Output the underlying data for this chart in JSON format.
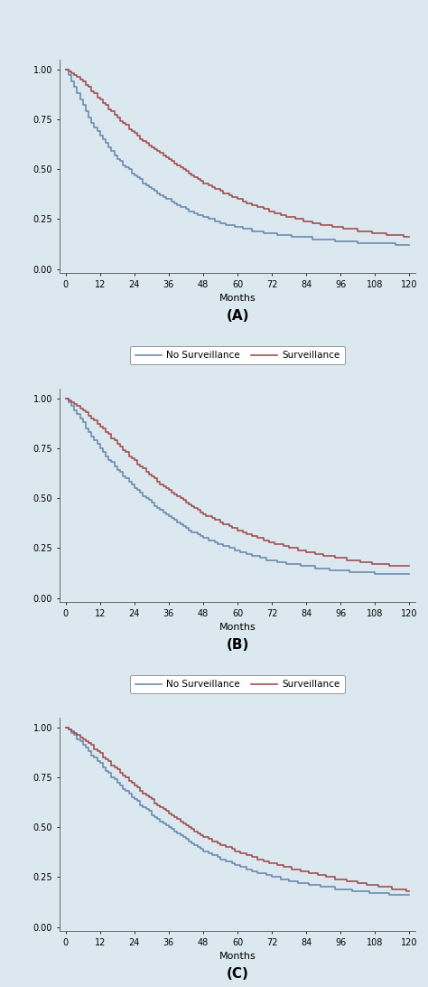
{
  "background_color": "#dce8f0",
  "plot_bg_color": "#dce8f0",
  "fig_width": 4.74,
  "fig_height": 10.92,
  "panels": [
    "A",
    "B",
    "C"
  ],
  "xlabel": "Months",
  "ylabel": "",
  "xticks": [
    0,
    12,
    24,
    36,
    48,
    60,
    72,
    84,
    96,
    108,
    120
  ],
  "yticks": [
    0.0,
    0.25,
    0.5,
    0.75,
    1.0
  ],
  "ylim": [
    -0.02,
    1.05
  ],
  "xlim": [
    -2,
    122
  ],
  "no_surv_color": "#6b8cae",
  "surv_color": "#a05050",
  "legend_labels": [
    "No Surveillance",
    "Surveillance"
  ],
  "line_width": 1.2,
  "panel_A": {
    "no_surv_x": [
      0,
      1,
      2,
      3,
      4,
      5,
      6,
      7,
      8,
      9,
      10,
      11,
      12,
      13,
      14,
      15,
      16,
      17,
      18,
      19,
      20,
      21,
      22,
      23,
      24,
      25,
      26,
      27,
      28,
      29,
      30,
      31,
      32,
      33,
      34,
      35,
      36,
      37,
      38,
      39,
      40,
      41,
      42,
      43,
      44,
      45,
      46,
      47,
      48,
      49,
      50,
      51,
      52,
      53,
      54,
      55,
      56,
      57,
      58,
      59,
      60,
      61,
      62,
      63,
      64,
      65,
      66,
      67,
      68,
      69,
      70,
      71,
      72,
      73,
      74,
      75,
      76,
      77,
      78,
      79,
      80,
      81,
      82,
      83,
      84,
      85,
      86,
      87,
      88,
      89,
      90,
      91,
      92,
      93,
      94,
      95,
      96,
      97,
      98,
      99,
      100,
      101,
      102,
      103,
      104,
      105,
      106,
      107,
      108,
      109,
      110,
      111,
      112,
      113,
      114,
      115,
      116,
      117,
      118,
      119,
      120
    ],
    "no_surv_y": [
      1.0,
      0.97,
      0.94,
      0.91,
      0.88,
      0.85,
      0.82,
      0.79,
      0.76,
      0.73,
      0.71,
      0.69,
      0.67,
      0.65,
      0.63,
      0.61,
      0.59,
      0.57,
      0.55,
      0.54,
      0.52,
      0.51,
      0.5,
      0.48,
      0.47,
      0.46,
      0.45,
      0.43,
      0.42,
      0.41,
      0.4,
      0.39,
      0.38,
      0.37,
      0.36,
      0.35,
      0.35,
      0.34,
      0.33,
      0.32,
      0.31,
      0.31,
      0.3,
      0.29,
      0.29,
      0.28,
      0.27,
      0.27,
      0.26,
      0.26,
      0.25,
      0.25,
      0.24,
      0.24,
      0.23,
      0.23,
      0.22,
      0.22,
      0.22,
      0.21,
      0.21,
      0.21,
      0.2,
      0.2,
      0.2,
      0.19,
      0.19,
      0.19,
      0.19,
      0.18,
      0.18,
      0.18,
      0.18,
      0.18,
      0.17,
      0.17,
      0.17,
      0.17,
      0.17,
      0.16,
      0.16,
      0.16,
      0.16,
      0.16,
      0.16,
      0.16,
      0.15,
      0.15,
      0.15,
      0.15,
      0.15,
      0.15,
      0.15,
      0.15,
      0.14,
      0.14,
      0.14,
      0.14,
      0.14,
      0.14,
      0.14,
      0.14,
      0.13,
      0.13,
      0.13,
      0.13,
      0.13,
      0.13,
      0.13,
      0.13,
      0.13,
      0.13,
      0.13,
      0.13,
      0.13,
      0.12,
      0.12,
      0.12,
      0.12,
      0.12,
      0.12
    ],
    "surv_x": [
      0,
      1,
      2,
      3,
      4,
      5,
      6,
      7,
      8,
      9,
      10,
      11,
      12,
      13,
      14,
      15,
      16,
      17,
      18,
      19,
      20,
      21,
      22,
      23,
      24,
      25,
      26,
      27,
      28,
      29,
      30,
      31,
      32,
      33,
      34,
      35,
      36,
      37,
      38,
      39,
      40,
      41,
      42,
      43,
      44,
      45,
      46,
      47,
      48,
      49,
      50,
      51,
      52,
      53,
      54,
      55,
      56,
      57,
      58,
      59,
      60,
      61,
      62,
      63,
      64,
      65,
      66,
      67,
      68,
      69,
      70,
      71,
      72,
      73,
      74,
      75,
      76,
      77,
      78,
      79,
      80,
      81,
      82,
      83,
      84,
      85,
      86,
      87,
      88,
      89,
      90,
      91,
      92,
      93,
      94,
      95,
      96,
      97,
      98,
      99,
      100,
      101,
      102,
      103,
      104,
      105,
      106,
      107,
      108,
      109,
      110,
      111,
      112,
      113,
      114,
      115,
      116,
      117,
      118,
      119,
      120
    ],
    "surv_y": [
      1.0,
      0.99,
      0.98,
      0.97,
      0.96,
      0.95,
      0.94,
      0.92,
      0.91,
      0.89,
      0.88,
      0.86,
      0.85,
      0.83,
      0.82,
      0.8,
      0.79,
      0.77,
      0.76,
      0.74,
      0.73,
      0.72,
      0.7,
      0.69,
      0.68,
      0.67,
      0.65,
      0.64,
      0.63,
      0.62,
      0.61,
      0.6,
      0.59,
      0.58,
      0.57,
      0.56,
      0.55,
      0.54,
      0.53,
      0.52,
      0.51,
      0.5,
      0.49,
      0.48,
      0.47,
      0.46,
      0.45,
      0.44,
      0.43,
      0.43,
      0.42,
      0.41,
      0.4,
      0.4,
      0.39,
      0.38,
      0.38,
      0.37,
      0.36,
      0.36,
      0.35,
      0.35,
      0.34,
      0.33,
      0.33,
      0.32,
      0.32,
      0.31,
      0.31,
      0.3,
      0.3,
      0.29,
      0.29,
      0.28,
      0.28,
      0.27,
      0.27,
      0.26,
      0.26,
      0.26,
      0.25,
      0.25,
      0.25,
      0.24,
      0.24,
      0.24,
      0.23,
      0.23,
      0.23,
      0.22,
      0.22,
      0.22,
      0.22,
      0.21,
      0.21,
      0.21,
      0.21,
      0.2,
      0.2,
      0.2,
      0.2,
      0.2,
      0.19,
      0.19,
      0.19,
      0.19,
      0.19,
      0.18,
      0.18,
      0.18,
      0.18,
      0.18,
      0.17,
      0.17,
      0.17,
      0.17,
      0.17,
      0.17,
      0.16,
      0.16,
      0.16
    ]
  },
  "panel_B": {
    "no_surv_x": [
      0,
      1,
      2,
      3,
      4,
      5,
      6,
      7,
      8,
      9,
      10,
      11,
      12,
      13,
      14,
      15,
      16,
      17,
      18,
      19,
      20,
      21,
      22,
      23,
      24,
      25,
      26,
      27,
      28,
      29,
      30,
      31,
      32,
      33,
      34,
      35,
      36,
      37,
      38,
      39,
      40,
      41,
      42,
      43,
      44,
      45,
      46,
      47,
      48,
      49,
      50,
      51,
      52,
      53,
      54,
      55,
      56,
      57,
      58,
      59,
      60,
      61,
      62,
      63,
      64,
      65,
      66,
      67,
      68,
      69,
      70,
      71,
      72,
      73,
      74,
      75,
      76,
      77,
      78,
      79,
      80,
      81,
      82,
      83,
      84,
      85,
      86,
      87,
      88,
      89,
      90,
      91,
      92,
      93,
      94,
      95,
      96,
      97,
      98,
      99,
      100,
      101,
      102,
      103,
      104,
      105,
      106,
      107,
      108,
      109,
      110,
      111,
      112,
      113,
      114,
      115,
      116,
      117,
      118,
      119,
      120
    ],
    "no_surv_y": [
      1.0,
      0.98,
      0.96,
      0.94,
      0.92,
      0.9,
      0.88,
      0.85,
      0.83,
      0.81,
      0.79,
      0.77,
      0.75,
      0.73,
      0.71,
      0.69,
      0.68,
      0.66,
      0.64,
      0.63,
      0.61,
      0.6,
      0.58,
      0.57,
      0.55,
      0.54,
      0.53,
      0.51,
      0.5,
      0.49,
      0.48,
      0.46,
      0.45,
      0.44,
      0.43,
      0.42,
      0.41,
      0.4,
      0.39,
      0.38,
      0.37,
      0.36,
      0.35,
      0.34,
      0.33,
      0.33,
      0.32,
      0.31,
      0.3,
      0.3,
      0.29,
      0.29,
      0.28,
      0.27,
      0.27,
      0.26,
      0.26,
      0.25,
      0.25,
      0.24,
      0.24,
      0.23,
      0.23,
      0.22,
      0.22,
      0.21,
      0.21,
      0.21,
      0.2,
      0.2,
      0.19,
      0.19,
      0.19,
      0.19,
      0.18,
      0.18,
      0.18,
      0.17,
      0.17,
      0.17,
      0.17,
      0.17,
      0.16,
      0.16,
      0.16,
      0.16,
      0.16,
      0.15,
      0.15,
      0.15,
      0.15,
      0.15,
      0.14,
      0.14,
      0.14,
      0.14,
      0.14,
      0.14,
      0.14,
      0.13,
      0.13,
      0.13,
      0.13,
      0.13,
      0.13,
      0.13,
      0.13,
      0.13,
      0.12,
      0.12,
      0.12,
      0.12,
      0.12,
      0.12,
      0.12,
      0.12,
      0.12,
      0.12,
      0.12,
      0.12,
      0.12
    ],
    "surv_x": [
      0,
      1,
      2,
      3,
      4,
      5,
      6,
      7,
      8,
      9,
      10,
      11,
      12,
      13,
      14,
      15,
      16,
      17,
      18,
      19,
      20,
      21,
      22,
      23,
      24,
      25,
      26,
      27,
      28,
      29,
      30,
      31,
      32,
      33,
      34,
      35,
      36,
      37,
      38,
      39,
      40,
      41,
      42,
      43,
      44,
      45,
      46,
      47,
      48,
      49,
      50,
      51,
      52,
      53,
      54,
      55,
      56,
      57,
      58,
      59,
      60,
      61,
      62,
      63,
      64,
      65,
      66,
      67,
      68,
      69,
      70,
      71,
      72,
      73,
      74,
      75,
      76,
      77,
      78,
      79,
      80,
      81,
      82,
      83,
      84,
      85,
      86,
      87,
      88,
      89,
      90,
      91,
      92,
      93,
      94,
      95,
      96,
      97,
      98,
      99,
      100,
      101,
      102,
      103,
      104,
      105,
      106,
      107,
      108,
      109,
      110,
      111,
      112,
      113,
      114,
      115,
      116,
      117,
      118,
      119,
      120
    ],
    "surv_y": [
      1.0,
      0.99,
      0.98,
      0.97,
      0.96,
      0.95,
      0.94,
      0.93,
      0.91,
      0.9,
      0.89,
      0.87,
      0.86,
      0.85,
      0.83,
      0.82,
      0.8,
      0.79,
      0.77,
      0.76,
      0.74,
      0.73,
      0.71,
      0.7,
      0.69,
      0.67,
      0.66,
      0.65,
      0.63,
      0.62,
      0.61,
      0.6,
      0.58,
      0.57,
      0.56,
      0.55,
      0.54,
      0.53,
      0.52,
      0.51,
      0.5,
      0.49,
      0.48,
      0.47,
      0.46,
      0.45,
      0.44,
      0.43,
      0.42,
      0.41,
      0.41,
      0.4,
      0.39,
      0.39,
      0.38,
      0.37,
      0.37,
      0.36,
      0.35,
      0.35,
      0.34,
      0.34,
      0.33,
      0.32,
      0.32,
      0.31,
      0.31,
      0.3,
      0.3,
      0.29,
      0.29,
      0.28,
      0.28,
      0.27,
      0.27,
      0.27,
      0.26,
      0.26,
      0.25,
      0.25,
      0.25,
      0.24,
      0.24,
      0.24,
      0.23,
      0.23,
      0.23,
      0.22,
      0.22,
      0.22,
      0.21,
      0.21,
      0.21,
      0.21,
      0.2,
      0.2,
      0.2,
      0.2,
      0.19,
      0.19,
      0.19,
      0.19,
      0.19,
      0.18,
      0.18,
      0.18,
      0.18,
      0.17,
      0.17,
      0.17,
      0.17,
      0.17,
      0.17,
      0.16,
      0.16,
      0.16,
      0.16,
      0.16,
      0.16,
      0.16,
      0.16
    ]
  },
  "panel_C": {
    "no_surv_x": [
      0,
      1,
      2,
      3,
      4,
      5,
      6,
      7,
      8,
      9,
      10,
      11,
      12,
      13,
      14,
      15,
      16,
      17,
      18,
      19,
      20,
      21,
      22,
      23,
      24,
      25,
      26,
      27,
      28,
      29,
      30,
      31,
      32,
      33,
      34,
      35,
      36,
      37,
      38,
      39,
      40,
      41,
      42,
      43,
      44,
      45,
      46,
      47,
      48,
      49,
      50,
      51,
      52,
      53,
      54,
      55,
      56,
      57,
      58,
      59,
      60,
      61,
      62,
      63,
      64,
      65,
      66,
      67,
      68,
      69,
      70,
      71,
      72,
      73,
      74,
      75,
      76,
      77,
      78,
      79,
      80,
      81,
      82,
      83,
      84,
      85,
      86,
      87,
      88,
      89,
      90,
      91,
      92,
      93,
      94,
      95,
      96,
      97,
      98,
      99,
      100,
      101,
      102,
      103,
      104,
      105,
      106,
      107,
      108,
      109,
      110,
      111,
      112,
      113,
      114,
      115,
      116,
      117,
      118,
      119,
      120
    ],
    "no_surv_y": [
      1.0,
      0.99,
      0.97,
      0.96,
      0.94,
      0.93,
      0.91,
      0.9,
      0.88,
      0.86,
      0.85,
      0.83,
      0.82,
      0.8,
      0.78,
      0.77,
      0.75,
      0.74,
      0.72,
      0.71,
      0.69,
      0.68,
      0.67,
      0.65,
      0.64,
      0.63,
      0.61,
      0.6,
      0.59,
      0.58,
      0.56,
      0.55,
      0.54,
      0.53,
      0.52,
      0.51,
      0.5,
      0.49,
      0.48,
      0.47,
      0.46,
      0.45,
      0.44,
      0.43,
      0.42,
      0.41,
      0.4,
      0.39,
      0.38,
      0.38,
      0.37,
      0.36,
      0.36,
      0.35,
      0.34,
      0.34,
      0.33,
      0.33,
      0.32,
      0.31,
      0.31,
      0.3,
      0.3,
      0.29,
      0.29,
      0.28,
      0.28,
      0.27,
      0.27,
      0.27,
      0.26,
      0.26,
      0.25,
      0.25,
      0.25,
      0.24,
      0.24,
      0.24,
      0.23,
      0.23,
      0.23,
      0.22,
      0.22,
      0.22,
      0.22,
      0.21,
      0.21,
      0.21,
      0.21,
      0.2,
      0.2,
      0.2,
      0.2,
      0.2,
      0.19,
      0.19,
      0.19,
      0.19,
      0.19,
      0.19,
      0.18,
      0.18,
      0.18,
      0.18,
      0.18,
      0.18,
      0.17,
      0.17,
      0.17,
      0.17,
      0.17,
      0.17,
      0.17,
      0.16,
      0.16,
      0.16,
      0.16,
      0.16,
      0.16,
      0.16,
      0.16
    ],
    "surv_x": [
      0,
      1,
      2,
      3,
      4,
      5,
      6,
      7,
      8,
      9,
      10,
      11,
      12,
      13,
      14,
      15,
      16,
      17,
      18,
      19,
      20,
      21,
      22,
      23,
      24,
      25,
      26,
      27,
      28,
      29,
      30,
      31,
      32,
      33,
      34,
      35,
      36,
      37,
      38,
      39,
      40,
      41,
      42,
      43,
      44,
      45,
      46,
      47,
      48,
      49,
      50,
      51,
      52,
      53,
      54,
      55,
      56,
      57,
      58,
      59,
      60,
      61,
      62,
      63,
      64,
      65,
      66,
      67,
      68,
      69,
      70,
      71,
      72,
      73,
      74,
      75,
      76,
      77,
      78,
      79,
      80,
      81,
      82,
      83,
      84,
      85,
      86,
      87,
      88,
      89,
      90,
      91,
      92,
      93,
      94,
      95,
      96,
      97,
      98,
      99,
      100,
      101,
      102,
      103,
      104,
      105,
      106,
      107,
      108,
      109,
      110,
      111,
      112,
      113,
      114,
      115,
      116,
      117,
      118,
      119,
      120
    ],
    "surv_y": [
      1.0,
      0.99,
      0.98,
      0.97,
      0.96,
      0.95,
      0.94,
      0.93,
      0.92,
      0.91,
      0.89,
      0.88,
      0.87,
      0.85,
      0.84,
      0.83,
      0.81,
      0.8,
      0.79,
      0.77,
      0.76,
      0.75,
      0.73,
      0.72,
      0.71,
      0.7,
      0.68,
      0.67,
      0.66,
      0.65,
      0.64,
      0.62,
      0.61,
      0.6,
      0.59,
      0.58,
      0.57,
      0.56,
      0.55,
      0.54,
      0.53,
      0.52,
      0.51,
      0.5,
      0.49,
      0.48,
      0.47,
      0.46,
      0.45,
      0.45,
      0.44,
      0.43,
      0.43,
      0.42,
      0.41,
      0.41,
      0.4,
      0.4,
      0.39,
      0.38,
      0.38,
      0.37,
      0.37,
      0.36,
      0.36,
      0.35,
      0.35,
      0.34,
      0.34,
      0.33,
      0.33,
      0.32,
      0.32,
      0.32,
      0.31,
      0.31,
      0.3,
      0.3,
      0.3,
      0.29,
      0.29,
      0.29,
      0.28,
      0.28,
      0.28,
      0.27,
      0.27,
      0.27,
      0.26,
      0.26,
      0.26,
      0.25,
      0.25,
      0.25,
      0.24,
      0.24,
      0.24,
      0.24,
      0.23,
      0.23,
      0.23,
      0.23,
      0.22,
      0.22,
      0.22,
      0.21,
      0.21,
      0.21,
      0.21,
      0.2,
      0.2,
      0.2,
      0.2,
      0.2,
      0.19,
      0.19,
      0.19,
      0.19,
      0.19,
      0.18,
      0.18
    ]
  }
}
